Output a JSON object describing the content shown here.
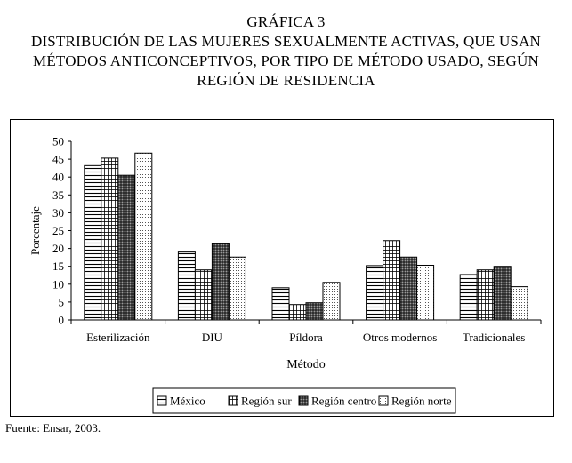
{
  "title_lines": [
    "GRÁFICA 3",
    "DISTRIBUCIÓN DE LAS MUJERES SEXUALMENTE ACTIVAS, QUE USAN",
    "MÉTODOS ANTICONCEPTIVOS, POR TIPO DE MÉTODO USADO, SEGÚN",
    "REGIÓN DE RESIDENCIA"
  ],
  "source_note": "Fuente: Ensar, 2003.",
  "chart_data": {
    "type": "bar",
    "xlabel": "Método",
    "ylabel": "Porcentaje",
    "ylim": [
      0,
      50
    ],
    "yticks": [
      0,
      5,
      10,
      15,
      20,
      25,
      30,
      35,
      40,
      45,
      50
    ],
    "grid": false,
    "legend_position": "bottom",
    "categories": [
      "Esterilización",
      "DIU",
      "Píldora",
      "Otros modernos",
      "Tradicionales"
    ],
    "series": [
      {
        "name": "México",
        "pattern": "horizontal-lines",
        "values": [
          43.2,
          19.0,
          9.0,
          15.2,
          12.7
        ]
      },
      {
        "name": "Región sur",
        "pattern": "grid",
        "values": [
          45.3,
          14.0,
          4.3,
          22.2,
          14.0
        ]
      },
      {
        "name": "Región centro",
        "pattern": "dense-grid",
        "values": [
          40.5,
          21.3,
          4.8,
          17.6,
          15.0
        ]
      },
      {
        "name": "Región norte",
        "pattern": "dots",
        "values": [
          46.7,
          17.6,
          10.5,
          15.3,
          9.3
        ]
      }
    ]
  }
}
